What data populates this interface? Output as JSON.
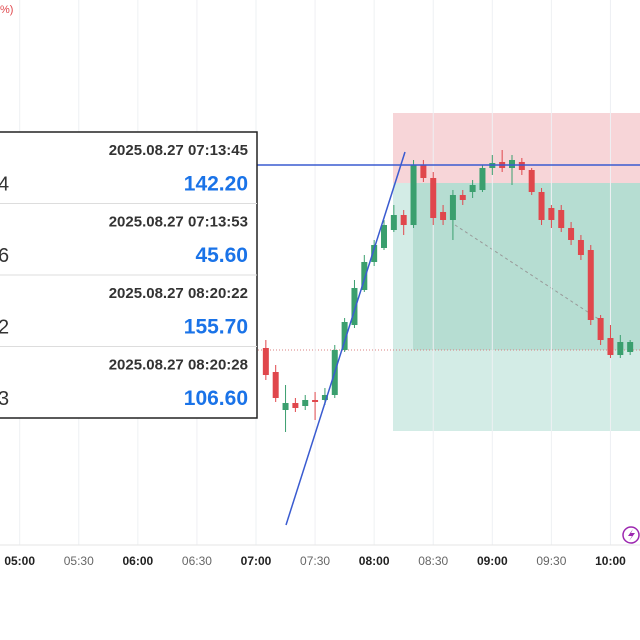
{
  "top_label": "%)",
  "chart_data": {
    "type": "candlestick",
    "x": [
      "07:05",
      "07:10",
      "07:15",
      "07:20",
      "07:25",
      "07:30",
      "07:35",
      "07:40",
      "07:45",
      "07:50",
      "07:55",
      "08:00",
      "08:05",
      "08:10",
      "08:15",
      "08:20",
      "08:25",
      "08:30",
      "08:35",
      "08:40",
      "08:45",
      "08:50",
      "08:55",
      "09:00",
      "09:05",
      "09:10",
      "09:15",
      "09:20",
      "09:25",
      "09:30",
      "09:35",
      "09:40",
      "09:45",
      "09:50",
      "09:55",
      "10:00",
      "10:05",
      "10:10"
    ],
    "open": [
      252,
      228,
      190,
      197,
      194,
      200,
      200,
      205,
      250,
      275,
      310,
      338,
      352,
      370,
      385,
      375,
      435,
      422,
      388,
      380,
      405,
      408,
      410,
      432,
      438,
      432,
      438,
      430,
      408,
      392,
      390,
      372,
      360,
      350,
      282,
      262,
      245,
      248
    ],
    "high": [
      260,
      235,
      215,
      202,
      205,
      208,
      212,
      255,
      282,
      320,
      345,
      360,
      380,
      395,
      390,
      440,
      440,
      428,
      395,
      410,
      410,
      420,
      435,
      445,
      450,
      445,
      442,
      432,
      412,
      395,
      395,
      378,
      365,
      355,
      285,
      275,
      265,
      260
    ],
    "low": [
      220,
      198,
      168,
      188,
      190,
      180,
      195,
      202,
      248,
      272,
      308,
      334,
      350,
      368,
      365,
      372,
      418,
      375,
      375,
      360,
      395,
      402,
      408,
      425,
      428,
      415,
      425,
      405,
      375,
      372,
      368,
      355,
      340,
      275,
      255,
      242,
      242,
      245
    ],
    "close": [
      225,
      202,
      197,
      192,
      200,
      198,
      205,
      250,
      278,
      312,
      338,
      355,
      375,
      385,
      375,
      435,
      422,
      382,
      380,
      405,
      400,
      415,
      432,
      437,
      432,
      440,
      430,
      408,
      380,
      380,
      372,
      360,
      345,
      280,
      260,
      245,
      258,
      258
    ],
    "xlim": [
      "04:50",
      "10:15"
    ],
    "ylim": [
      55,
      600
    ],
    "xticks": [
      "05:00",
      "05:30",
      "06:00",
      "06:30",
      "07:00",
      "07:30",
      "08:00",
      "08:30",
      "09:00",
      "09:30",
      "10:00"
    ],
    "up_color": "#3a9f6e",
    "down_color": "#e0474c",
    "grid": true
  },
  "table": {
    "rows": [
      [
        "2025.08.27 07:13:45",
        "4",
        "142.20"
      ],
      [
        "2025.08.27 07:13:53",
        "6",
        "45.60"
      ],
      [
        "2025.08.27 08:20:22",
        "2",
        "155.70"
      ],
      [
        "2025.08.27 08:20:28",
        "3",
        "106.60"
      ]
    ]
  }
}
